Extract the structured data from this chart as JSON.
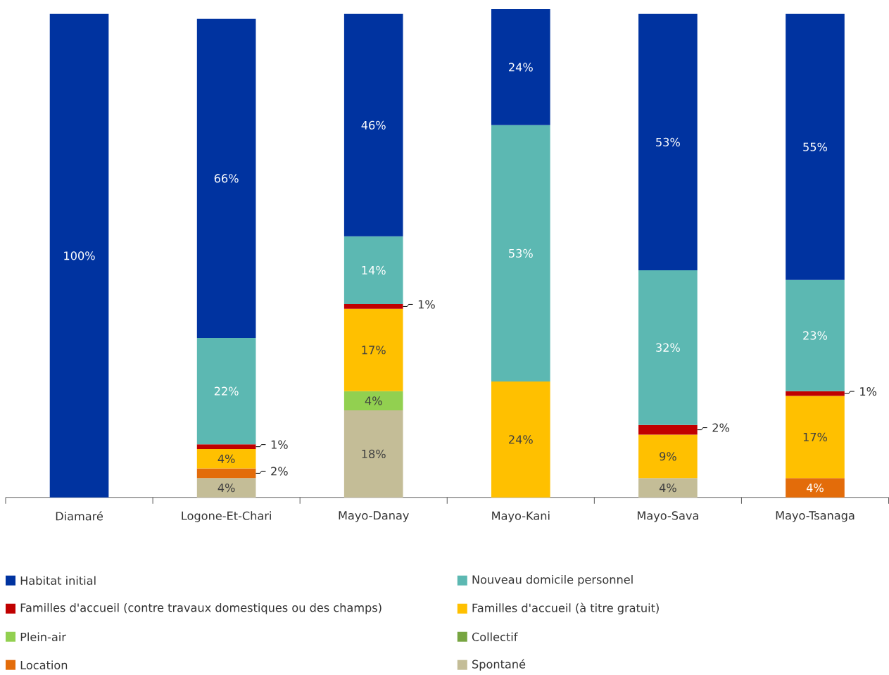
{
  "chart_data": {
    "type": "bar",
    "stacked": true,
    "legend": "bottom",
    "categories": [
      "Diamaré",
      "Logone-Et-Chari",
      "Mayo-Danay",
      "Mayo-Kani",
      "Mayo-Sava",
      "Mayo-Tsanaga"
    ],
    "series": [
      {
        "name": "Spontané",
        "color": "#c4bd97",
        "values": [
          null,
          4,
          18,
          null,
          4,
          null
        ],
        "value_labels": [
          null,
          "4%",
          "18%",
          null,
          "4%",
          null
        ]
      },
      {
        "name": "Location",
        "color": "#e36c0a",
        "values": [
          null,
          2,
          null,
          null,
          null,
          4
        ],
        "value_labels": [
          null,
          "2%",
          null,
          null,
          null,
          "4%"
        ]
      },
      {
        "name": "Collectif",
        "color": "#77a541",
        "values": [
          null,
          null,
          null,
          null,
          null,
          null
        ],
        "value_labels": [
          null,
          null,
          null,
          null,
          null,
          null
        ]
      },
      {
        "name": "Plein-air",
        "color": "#92d050",
        "values": [
          null,
          null,
          4,
          null,
          null,
          null
        ],
        "value_labels": [
          null,
          null,
          "4%",
          null,
          null,
          null
        ]
      },
      {
        "name": "Familles d'accueil (à titre gratuit)",
        "color": "#ffc000",
        "values": [
          null,
          4,
          17,
          24,
          9,
          17
        ],
        "value_labels": [
          null,
          "4%",
          "17%",
          "24%",
          "9%",
          "17%"
        ]
      },
      {
        "name": "Familles d'accueil (contre travaux domestiques ou des champs)",
        "color": "#c00000",
        "values": [
          null,
          1,
          1,
          null,
          2,
          1
        ],
        "value_labels": [
          null,
          "1%",
          "1%",
          null,
          "2%",
          "1%"
        ]
      },
      {
        "name": "Nouveau domicile personnel",
        "color": "#5cb8b2",
        "values": [
          null,
          22,
          14,
          53,
          32,
          23
        ],
        "value_labels": [
          null,
          "22%",
          "14%",
          "53%",
          "32%",
          "23%"
        ]
      },
      {
        "name": "Habitat initial",
        "color": "#0033a0",
        "values": [
          100,
          66,
          46,
          24,
          53,
          55
        ],
        "value_labels": [
          "100%",
          "66%",
          "46%",
          "24%",
          "53%",
          "55%"
        ]
      }
    ]
  }
}
